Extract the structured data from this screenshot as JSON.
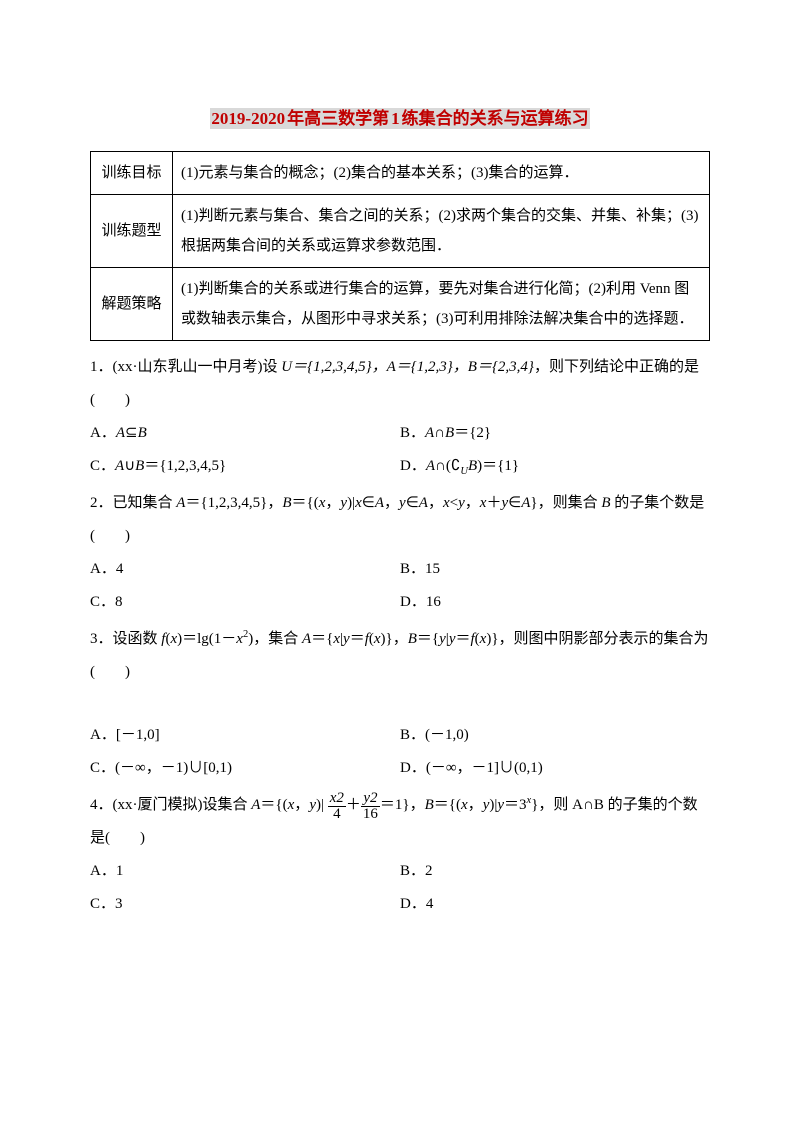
{
  "title": {
    "segments": [
      "2019-2020",
      "年高三数学第",
      "1",
      "练集合的关系与运算练习"
    ],
    "color": "#c00000",
    "highlight_bg": "#d9d9d9",
    "fontsize": 17
  },
  "table": {
    "border_color": "#000000",
    "rows": [
      {
        "label": "训练目标",
        "content": "(1)元素与集合的概念；(2)集合的基本关系；(3)集合的运算．"
      },
      {
        "label": "训练题型",
        "content": "(1)判断元素与集合、集合之间的关系；(2)求两个集合的交集、并集、补集；(3)根据两集合间的关系或运算求参数范围．"
      },
      {
        "label": "解题策略",
        "content": "(1)判断集合的关系或进行集合的运算，要先对集合进行化简；(2)利用 Venn 图或数轴表示集合，从图形中寻求关系；(3)可利用排除法解决集合中的选择题．"
      }
    ]
  },
  "questions": [
    {
      "stem_pre": "1．(xx·山东乳山一中月考)设 ",
      "stem_math": "U＝{1,2,3,4,5}，A＝{1,2,3}，B＝{2,3,4}",
      "stem_post": "，则下列结论中正确的是(　　)",
      "options": [
        {
          "label": "A．",
          "val": "A⊆B"
        },
        {
          "label": "B．",
          "val": "A∩B＝{2}"
        },
        {
          "label": "C．",
          "val": "A∪B＝{1,2,3,4,5}"
        },
        {
          "label": "D．",
          "val": "A∩(∁_U B)＝{1}"
        }
      ]
    },
    {
      "stem_pre": "2．已知集合 ",
      "stem_math": "A＝{1,2,3,4,5}，B＝{(x，y)|x∈A，y∈A，x<y，x＋y∈A}",
      "stem_post": "，则集合 B 的子集个数是(　　)",
      "options": [
        {
          "label": "A．",
          "val": "4"
        },
        {
          "label": "B．",
          "val": "15"
        },
        {
          "label": "C．",
          "val": "8"
        },
        {
          "label": "D．",
          "val": "16"
        }
      ]
    },
    {
      "stem_pre": "3．设函数 ",
      "stem_math": "f(x)＝lg(1－x²)，集合 A＝{x|y＝f(x)}，B＝{y|y＝f(x)}",
      "stem_post": "，则图中阴影部分表示的集合为(　　)",
      "image_gap": true,
      "options": [
        {
          "label": "A．",
          "val": "[－1,0]"
        },
        {
          "label": "B．",
          "val": "(－1,0)"
        },
        {
          "label": "C．",
          "val": "(－∞，－1)∪[0,1)"
        },
        {
          "label": "D．",
          "val": "(－∞，－1]∪(0,1)"
        }
      ]
    },
    {
      "stem_pre": "4．(xx·厦门模拟)设集合 ",
      "stem_math_frac": true,
      "stem_post": "，则 A∩B 的子集的个数是(　　)",
      "options": [
        {
          "label": "A．",
          "val": "1"
        },
        {
          "label": "B．",
          "val": "2"
        },
        {
          "label": "C．",
          "val": "3"
        },
        {
          "label": "D．",
          "val": "4"
        }
      ]
    }
  ],
  "fractions": {
    "q4": {
      "num1": "x2",
      "den1": "4",
      "num2": "y2",
      "den2": "16",
      "mid": "＋",
      "eq": "＝1}，B＝{(x，y)|y＝3",
      "exp": "x",
      "tail": "}"
    }
  }
}
